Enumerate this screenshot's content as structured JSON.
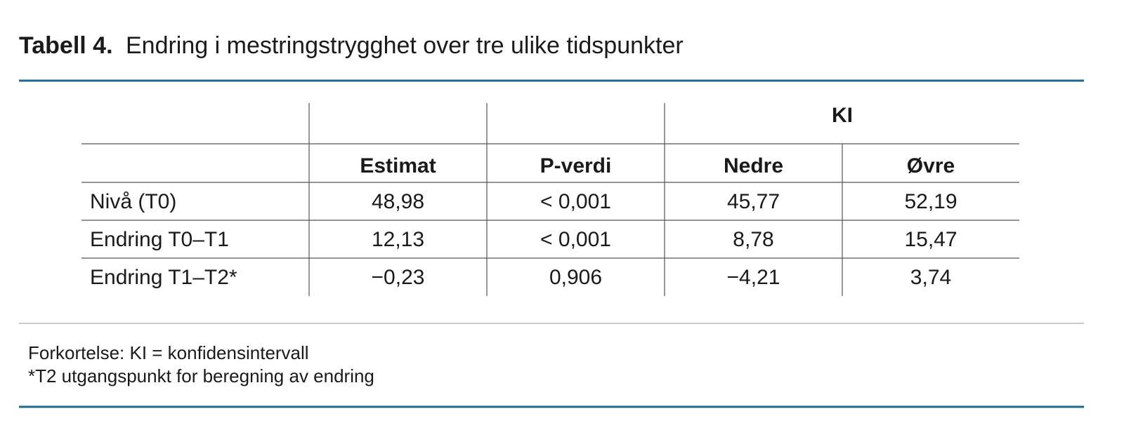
{
  "header": {
    "label": "Tabell 4.",
    "title": "Endring i mestringstrygghet over tre ulike tidspunkter"
  },
  "table": {
    "group_header": "KI",
    "columns": [
      "Estimat",
      "P-verdi",
      "Nedre",
      "Øvre"
    ],
    "rows": [
      [
        "Nivå (T0)",
        "48,98",
        "< 0,001",
        "45,77",
        "52,19"
      ],
      [
        "Endring T0–T1",
        "12,13",
        "< 0,001",
        "8,78",
        "15,47"
      ],
      [
        "Endring T1–T2*",
        "−0,23",
        "0,906",
        "−4,21",
        "3,74"
      ]
    ]
  },
  "footnotes": [
    "Forkortelse: KI = konfidensintervall",
    "*T2 utgangspunkt for beregning av endring"
  ]
}
